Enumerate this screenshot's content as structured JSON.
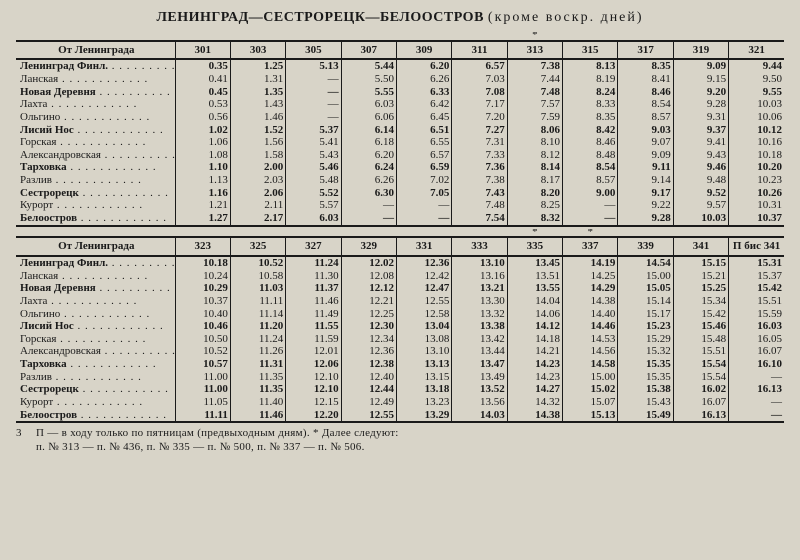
{
  "title_main": "ЛЕНИНГРАД—СЕСТРОРЕЦК—БЕЛООСТРОВ",
  "title_note": "(кроме  воскр.  дней)",
  "origin_label": "От Ленинграда",
  "tables": [
    {
      "trains": [
        "301",
        "303",
        "305",
        "307",
        "309",
        "311",
        "313",
        "315",
        "317",
        "319",
        "321"
      ],
      "stars": [
        "",
        "",
        "",
        "",
        "",
        "",
        "*",
        "",
        "",
        "",
        ""
      ],
      "rows": [
        {
          "station": "Ленинград Финл.",
          "bold": true,
          "v": [
            "0.35",
            "1.25",
            "5.13",
            "5.44",
            "6.20",
            "6.57",
            "7.38",
            "8.13",
            "8.35",
            "9.09",
            "9.44"
          ]
        },
        {
          "station": "Ланская",
          "bold": false,
          "v": [
            "0.41",
            "1.31",
            "—",
            "5.50",
            "6.26",
            "7.03",
            "7.44",
            "8.19",
            "8.41",
            "9.15",
            "9.50"
          ]
        },
        {
          "station": "Новая Деревня",
          "bold": true,
          "v": [
            "0.45",
            "1.35",
            "—",
            "5.55",
            "6.33",
            "7.08",
            "7.48",
            "8.24",
            "8.46",
            "9.20",
            "9.55"
          ]
        },
        {
          "station": "Лахта",
          "bold": false,
          "v": [
            "0.53",
            "1.43",
            "—",
            "6.03",
            "6.42",
            "7.17",
            "7.57",
            "8.33",
            "8.54",
            "9.28",
            "10.03"
          ]
        },
        {
          "station": "Ольгино",
          "bold": false,
          "v": [
            "0.56",
            "1.46",
            "—",
            "6.06",
            "6.45",
            "7.20",
            "7.59",
            "8.35",
            "8.57",
            "9.31",
            "10.06"
          ]
        },
        {
          "station": "Лисий Нос",
          "bold": true,
          "v": [
            "1.02",
            "1.52",
            "5.37",
            "6.14",
            "6.51",
            "7.27",
            "8.06",
            "8.42",
            "9.03",
            "9.37",
            "10.12"
          ]
        },
        {
          "station": "Горская",
          "bold": false,
          "v": [
            "1.06",
            "1.56",
            "5.41",
            "6.18",
            "6.55",
            "7.31",
            "8.10",
            "8.46",
            "9.07",
            "9.41",
            "10.16"
          ]
        },
        {
          "station": "Александровская",
          "bold": false,
          "v": [
            "1.08",
            "1.58",
            "5.43",
            "6.20",
            "6.57",
            "7.33",
            "8.12",
            "8.48",
            "9.09",
            "9.43",
            "10.18"
          ]
        },
        {
          "station": "Тарховка",
          "bold": true,
          "v": [
            "1.10",
            "2.00",
            "5.46",
            "6.24",
            "6.59",
            "7.36",
            "8.14",
            "8.54",
            "9.11",
            "9.46",
            "10.20"
          ]
        },
        {
          "station": "Разлив",
          "bold": false,
          "v": [
            "1.13",
            "2.03",
            "5.48",
            "6.26",
            "7.02",
            "7.38",
            "8.17",
            "8.57",
            "9.14",
            "9.48",
            "10.23"
          ]
        },
        {
          "station": "Сестрорецк",
          "bold": true,
          "v": [
            "1.16",
            "2.06",
            "5.52",
            "6.30",
            "7.05",
            "7.43",
            "8.20",
            "9.00",
            "9.17",
            "9.52",
            "10.26"
          ]
        },
        {
          "station": "Курорт",
          "bold": false,
          "v": [
            "1.21",
            "2.11",
            "5.57",
            "—",
            "—",
            "7.48",
            "8.25",
            "—",
            "9.22",
            "9.57",
            "10.31"
          ]
        },
        {
          "station": "Белоостров",
          "bold": true,
          "v": [
            "1.27",
            "2.17",
            "6.03",
            "—",
            "—",
            "7.54",
            "8.32",
            "—",
            "9.28",
            "10.03",
            "10.37"
          ]
        }
      ]
    },
    {
      "trains": [
        "323",
        "325",
        "327",
        "329",
        "331",
        "333",
        "335",
        "337",
        "339",
        "341",
        "П бис 341"
      ],
      "stars": [
        "",
        "",
        "",
        "",
        "",
        "",
        "*",
        "*",
        "",
        "",
        ""
      ],
      "rows": [
        {
          "station": "Ленинград Финл.",
          "bold": true,
          "v": [
            "10.18",
            "10.52",
            "11.24",
            "12.02",
            "12.36",
            "13.10",
            "13.45",
            "14.19",
            "14.54",
            "15.15",
            "15.31"
          ]
        },
        {
          "station": "Ланская",
          "bold": false,
          "v": [
            "10.24",
            "10.58",
            "11.30",
            "12.08",
            "12.42",
            "13.16",
            "13.51",
            "14.25",
            "15.00",
            "15.21",
            "15.37"
          ]
        },
        {
          "station": "Новая Деревня",
          "bold": true,
          "v": [
            "10.29",
            "11.03",
            "11.37",
            "12.12",
            "12.47",
            "13.21",
            "13.55",
            "14.29",
            "15.05",
            "15.25",
            "15.42"
          ]
        },
        {
          "station": "Лахта",
          "bold": false,
          "v": [
            "10.37",
            "11.11",
            "11.46",
            "12.21",
            "12.55",
            "13.30",
            "14.04",
            "14.38",
            "15.14",
            "15.34",
            "15.51"
          ]
        },
        {
          "station": "Ольгино",
          "bold": false,
          "v": [
            "10.40",
            "11.14",
            "11.49",
            "12.25",
            "12.58",
            "13.32",
            "14.06",
            "14.40",
            "15.17",
            "15.42",
            "15.59"
          ]
        },
        {
          "station": "Лисий Нос",
          "bold": true,
          "v": [
            "10.46",
            "11.20",
            "11.55",
            "12.30",
            "13.04",
            "13.38",
            "14.12",
            "14.46",
            "15.23",
            "15.46",
            "16.03"
          ]
        },
        {
          "station": "Горская",
          "bold": false,
          "v": [
            "10.50",
            "11.24",
            "11.59",
            "12.34",
            "13.08",
            "13.42",
            "14.18",
            "14.53",
            "15.29",
            "15.48",
            "16.05"
          ]
        },
        {
          "station": "Александровская",
          "bold": false,
          "v": [
            "10.52",
            "11.26",
            "12.01",
            "12.36",
            "13.10",
            "13.44",
            "14.21",
            "14.56",
            "15.32",
            "15.51",
            "16.07"
          ]
        },
        {
          "station": "Тарховка",
          "bold": true,
          "v": [
            "10.57",
            "11.31",
            "12.06",
            "12.38",
            "13.13",
            "13.47",
            "14.23",
            "14.58",
            "15.35",
            "15.54",
            "16.10"
          ]
        },
        {
          "station": "Разлив",
          "bold": false,
          "v": [
            "11.00",
            "11.35",
            "12.10",
            "12.40",
            "13.15",
            "13.49",
            "14.23",
            "15.00",
            "15.35",
            "15.54",
            "—"
          ]
        },
        {
          "station": "Сестрорецк",
          "bold": true,
          "v": [
            "11.00",
            "11.35",
            "12.10",
            "12.44",
            "13.18",
            "13.52",
            "14.27",
            "15.02",
            "15.38",
            "16.02",
            "16.13"
          ]
        },
        {
          "station": "Курорт",
          "bold": false,
          "v": [
            "11.05",
            "11.40",
            "12.15",
            "12.49",
            "13.23",
            "13.56",
            "14.32",
            "15.07",
            "15.43",
            "16.07",
            "—"
          ]
        },
        {
          "station": "Белоостров",
          "bold": true,
          "v": [
            "11.11",
            "11.46",
            "12.20",
            "12.55",
            "13.29",
            "14.03",
            "14.38",
            "15.13",
            "15.49",
            "16.13",
            "—"
          ]
        }
      ]
    }
  ],
  "footnote_side": "3",
  "footnote_line1": "П — в ходу только по пятницам (предвыходным дням).  *  Далее  следуют:",
  "footnote_line2": "п. № 313 — п. № 436,  п.  № 335 — п. № 500, п. № 337 — п. № 506."
}
